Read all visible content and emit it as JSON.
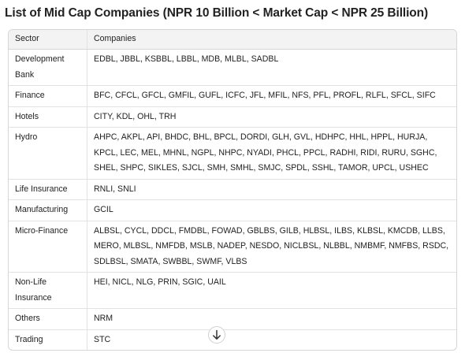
{
  "header": {
    "title": "List of Mid Cap Companies (NPR 10 Billion < Market Cap < NPR 25 Billion)"
  },
  "table": {
    "headers": [
      "Sector",
      "Companies"
    ],
    "rows": [
      [
        "Development Bank",
        "EDBL, JBBL, KSBBL, LBBL, MDB, MLBL, SADBL"
      ],
      [
        "Finance",
        "BFC, CFCL, GFCL, GMFIL, GUFL, ICFC, JFL, MFIL, NFS, PFL, PROFL, RLFL, SFCL, SIFC"
      ],
      [
        "Hotels",
        "CITY, KDL, OHL, TRH"
      ],
      [
        "Hydro",
        "AHPC, AKPL, API, BHDC, BHL, BPCL, DORDI, GLH, GVL, HDHPC, HHL, HPPL, HURJA, KPCL, LEC, MEL, MHNL, NGPL, NHPC, NYADI, PHCL, PPCL, RADHI, RIDI, RURU, SGHC, SHEL, SHPC, SIKLES, SJCL, SMH, SMHL, SMJC, SPDL, SSHL, TAMOR, UPCL, USHEC"
      ],
      [
        "Life Insurance",
        "RNLI, SNLI"
      ],
      [
        "Manufacturing",
        "GCIL"
      ],
      [
        "Micro-Finance",
        "ALBSL, CYCL, DDCL, FMDBL, FOWAD, GBLBS, GILB, HLBSL, ILBS, KLBSL, KMCDB, LLBS, MERO, MLBSL, NMFDB, MSLB, NADEP, NESDO, NICLBSL, NLBBL, NMBMF, NMFBS, RSDC, SDLBSL, SMATA, SWBBL, SWMF, VLBS"
      ],
      [
        "Non-Life Insurance",
        "HEI, NICL, NLG, PRIN, SGIC, UAIL"
      ],
      [
        "Others",
        "NRM"
      ],
      [
        "Trading",
        "STC"
      ]
    ]
  }
}
